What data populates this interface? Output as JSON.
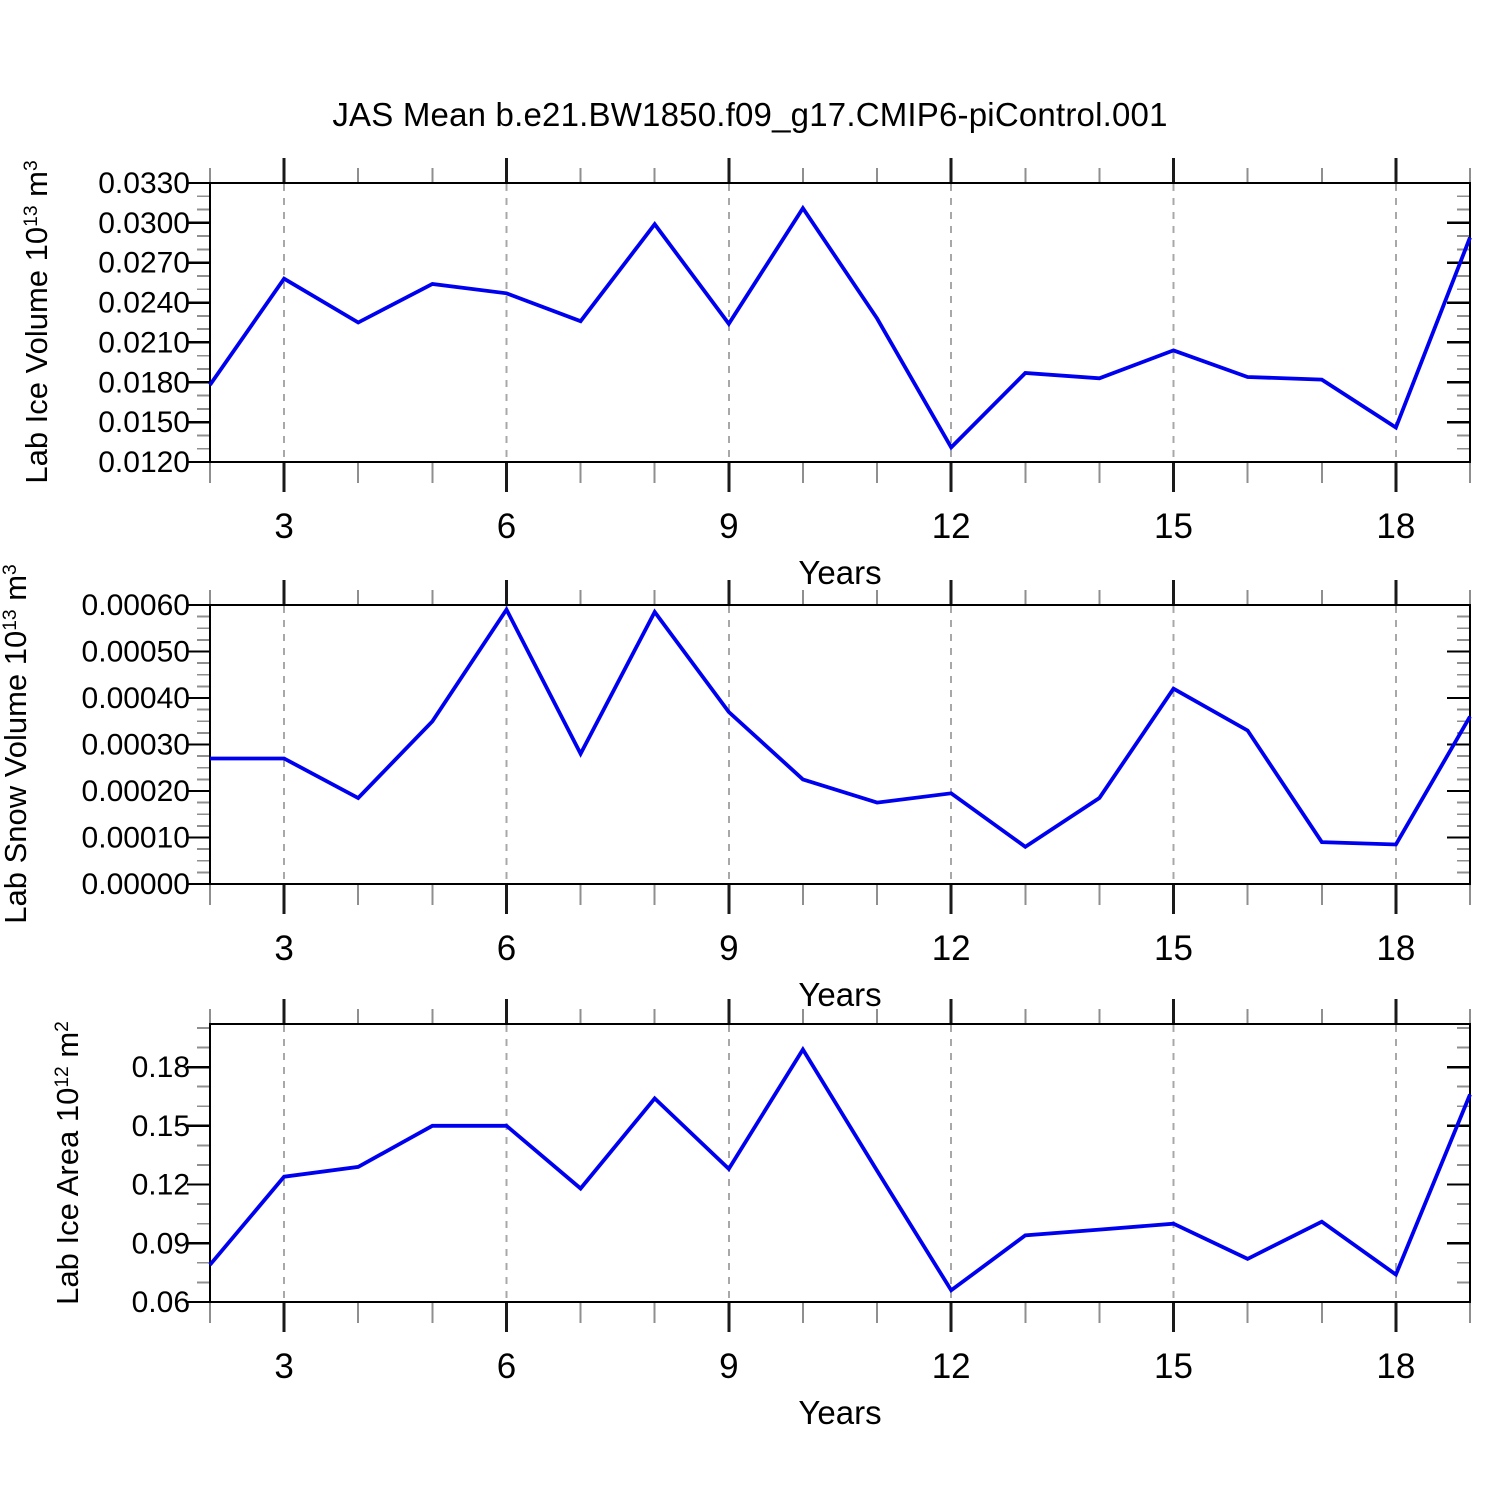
{
  "title": "JAS Mean b.e21.BW1850.f09_g17.CMIP6-piControl.001",
  "colors": {
    "line": "#0000F0",
    "frame": "#000000",
    "grid": "#A8A8A8",
    "tick_major": "#1A1A1A",
    "tick_minor": "#8F8F8F"
  },
  "chart_data": [
    {
      "type": "line",
      "name": "lab-ice-volume",
      "ylabel_parts": [
        {
          "t": "Lab Ice Volume 10",
          "sup": false
        },
        {
          "t": "13",
          "sup": true
        },
        {
          "t": " m",
          "sup": false
        },
        {
          "t": "3",
          "sup": true
        }
      ],
      "xlabel": "Years",
      "x": [
        2,
        3,
        4,
        5,
        6,
        7,
        8,
        9,
        10,
        11,
        12,
        13,
        14,
        15,
        16,
        17,
        18,
        19
      ],
      "values": [
        0.0178,
        0.0258,
        0.0225,
        0.0254,
        0.0247,
        0.0226,
        0.0299,
        0.0224,
        0.0311,
        0.0228,
        0.0131,
        0.0187,
        0.0183,
        0.0204,
        0.0184,
        0.0182,
        0.0146,
        0.0289
      ],
      "xlim": [
        2,
        19
      ],
      "ylim": [
        0.012,
        0.033
      ],
      "grid": "vertical-dashed-at-major-xticks",
      "legend": "none",
      "yticks": {
        "values": [
          0.012,
          0.015,
          0.018,
          0.021,
          0.024,
          0.027,
          0.03,
          0.033
        ],
        "labels": [
          "0.0120",
          "0.0150",
          "0.0180",
          "0.0210",
          "0.0240",
          "0.0270",
          "0.0300",
          "0.0330"
        ],
        "minor_step": 0.001
      },
      "xticks": {
        "major": [
          3,
          6,
          9,
          12,
          15,
          18
        ],
        "labels": [
          "3",
          "6",
          "9",
          "12",
          "15",
          "18"
        ],
        "minor_step": 1
      }
    },
    {
      "type": "line",
      "name": "lab-snow-volume",
      "ylabel_parts": [
        {
          "t": "Lab Snow Volume 10",
          "sup": false
        },
        {
          "t": "13",
          "sup": true
        },
        {
          "t": " m",
          "sup": false
        },
        {
          "t": "3",
          "sup": true
        }
      ],
      "xlabel": "Years",
      "x": [
        2,
        3,
        4,
        5,
        6,
        7,
        8,
        9,
        10,
        11,
        12,
        13,
        14,
        15,
        16,
        17,
        18,
        19
      ],
      "values": [
        0.00027,
        0.00027,
        0.000185,
        0.00035,
        0.00059,
        0.00028,
        0.000585,
        0.00037,
        0.000225,
        0.000175,
        0.000195,
        8e-05,
        0.000185,
        0.00042,
        0.00033,
        9e-05,
        8.5e-05,
        0.00036
      ],
      "xlim": [
        2,
        19
      ],
      "ylim": [
        0.0,
        0.0006
      ],
      "grid": "vertical-dashed-at-major-xticks",
      "legend": "none",
      "yticks": {
        "values": [
          0.0,
          0.0001,
          0.0002,
          0.0003,
          0.0004,
          0.0005,
          0.0006
        ],
        "labels": [
          "0.00000",
          "0.00010",
          "0.00020",
          "0.00030",
          "0.00040",
          "0.00050",
          "0.00060"
        ],
        "minor_step": 2.5e-05
      },
      "xticks": {
        "major": [
          3,
          6,
          9,
          12,
          15,
          18
        ],
        "labels": [
          "3",
          "6",
          "9",
          "12",
          "15",
          "18"
        ],
        "minor_step": 1
      }
    },
    {
      "type": "line",
      "name": "lab-ice-area",
      "ylabel_parts": [
        {
          "t": "Lab Ice Area 10",
          "sup": false
        },
        {
          "t": "12",
          "sup": true
        },
        {
          "t": " m",
          "sup": false
        },
        {
          "t": "2",
          "sup": true
        }
      ],
      "xlabel": "Years",
      "x": [
        2,
        3,
        4,
        5,
        6,
        7,
        8,
        9,
        10,
        11,
        12,
        13,
        14,
        15,
        16,
        17,
        18,
        19
      ],
      "values": [
        0.079,
        0.124,
        0.129,
        0.15,
        0.15,
        0.118,
        0.164,
        0.128,
        0.189,
        0.127,
        0.066,
        0.094,
        0.097,
        0.1,
        0.082,
        0.101,
        0.074,
        0.166
      ],
      "xlim": [
        2,
        19
      ],
      "ylim": [
        0.06,
        0.202
      ],
      "grid": "vertical-dashed-at-major-xticks",
      "legend": "none",
      "yticks": {
        "values": [
          0.06,
          0.09,
          0.12,
          0.15,
          0.18
        ],
        "labels": [
          "0.06",
          "0.09",
          "0.12",
          "0.15",
          "0.18"
        ],
        "minor_step": 0.01
      },
      "xticks": {
        "major": [
          3,
          6,
          9,
          12,
          15,
          18
        ],
        "labels": [
          "3",
          "6",
          "9",
          "12",
          "15",
          "18"
        ],
        "minor_step": 1
      }
    }
  ]
}
